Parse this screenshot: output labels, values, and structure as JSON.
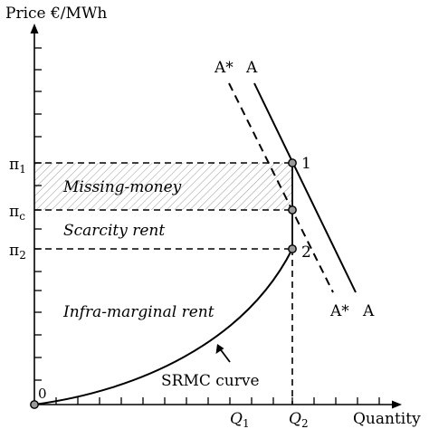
{
  "axes": {
    "y_label": "Price €/MWh",
    "x_label": "Quantity",
    "origin_label": "0"
  },
  "price_levels": {
    "pi1": {
      "sym": "π",
      "sub": "1"
    },
    "pic": {
      "sym": "π",
      "sub": "c"
    },
    "pi2": {
      "sym": "π",
      "sub": "2"
    }
  },
  "quantity_levels": {
    "q1": {
      "sym": "Q",
      "sub": "1"
    },
    "q2": {
      "sym": "Q",
      "sub": "2"
    }
  },
  "demand_curves": {
    "a_star_top": "A*",
    "a_top": "A",
    "a_star_bottom": "A*",
    "a_bottom": "A"
  },
  "points": {
    "p1": "1",
    "p2": "2"
  },
  "regions": {
    "missing_money": "Missing-money",
    "scarcity_rent": "Scarcity rent",
    "inframarginal_rent": "Infra-marginal rent"
  },
  "srmc_label": "SRMC curve",
  "colors": {
    "ink": "#000000",
    "hatch": "#9a9a9a",
    "point_fill": "#9a9a9a"
  }
}
